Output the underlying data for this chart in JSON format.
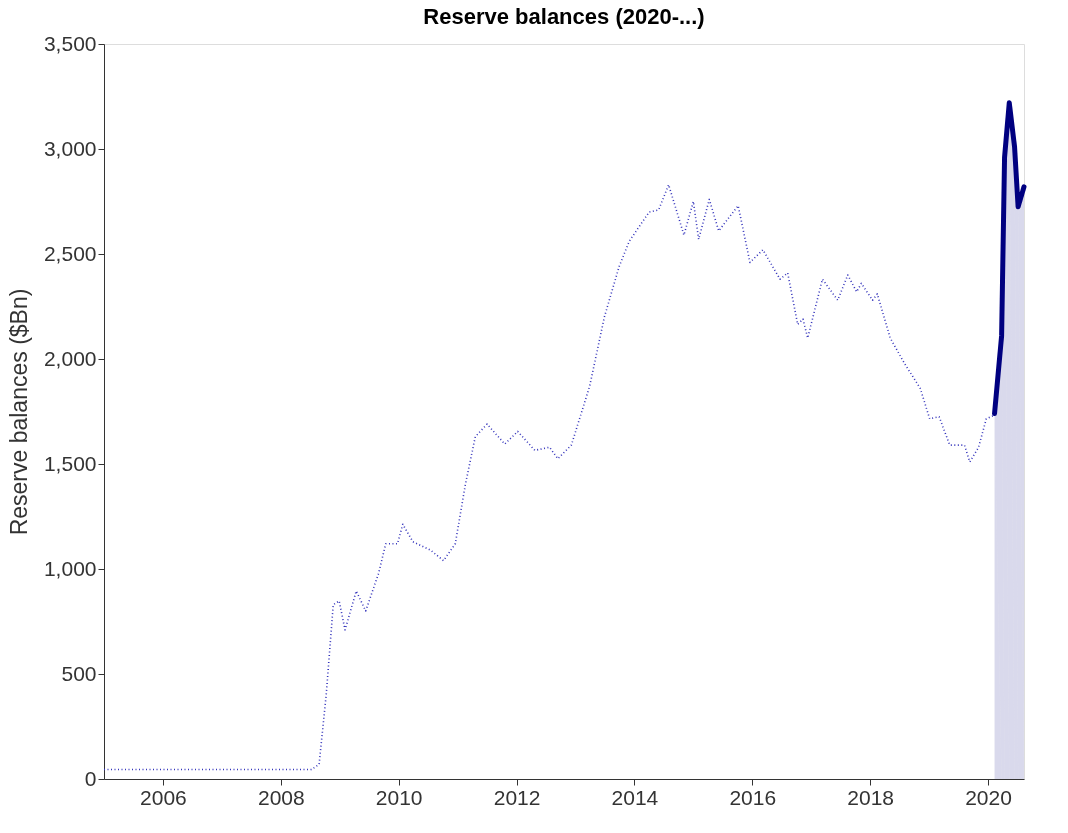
{
  "chart_data": {
    "type": "line",
    "title": "Reserve balances (2020-...)",
    "ylabel": "Reserve balances ($Bn)",
    "xlim": [
      2005,
      2020.61
    ],
    "xticks": [
      2006,
      2008,
      2010,
      2012,
      2014,
      2016,
      2018,
      2020
    ],
    "ylim": [
      0,
      3500
    ],
    "yticks": [
      0,
      500,
      {
        "value": 1000,
        "label": "1,000"
      },
      {
        "value": 1500,
        "label": "1,500"
      },
      {
        "value": 2000,
        "label": "2,000"
      },
      {
        "value": 2500,
        "label": "2,500"
      },
      {
        "value": 3000,
        "label": "3,000"
      },
      {
        "value": 3500,
        "label": "3,500"
      }
    ],
    "grid": false,
    "series": [
      {
        "line_style": "dotted",
        "color": "#3333bb",
        "x": [
          2005.0,
          2008.52,
          2008.65,
          2008.77,
          2008.89,
          2008.99,
          2009.09,
          2009.28,
          2009.44,
          2009.66,
          2009.78,
          2009.98,
          2010.07,
          2010.24,
          2010.54,
          2010.76,
          2010.96,
          2011.13,
          2011.3,
          2011.5,
          2011.8,
          2012.02,
          2012.31,
          2012.56,
          2012.7,
          2012.93,
          2013.24,
          2013.49,
          2013.74,
          2013.91,
          2014.25,
          2014.41,
          2014.58,
          2014.84,
          2015.0,
          2015.09,
          2015.27,
          2015.43,
          2015.76,
          2015.96,
          2016.18,
          2016.47,
          2016.6,
          2016.77,
          2016.86,
          2016.94,
          2017.19,
          2017.45,
          2017.62,
          2017.77,
          2017.85,
          2018.04,
          2018.12,
          2018.34,
          2018.58,
          2018.85,
          2019.01,
          2019.17,
          2019.35,
          2019.6,
          2019.69,
          2019.84,
          2019.97,
          2020.09
        ],
        "values": [
          45,
          45,
          70,
          400,
          830,
          848,
          710,
          895,
          800,
          980,
          1120,
          1120,
          1213,
          1130,
          1090,
          1040,
          1120,
          1400,
          1630,
          1690,
          1595,
          1655,
          1565,
          1580,
          1525,
          1590,
          1870,
          2200,
          2440,
          2560,
          2700,
          2710,
          2830,
          2590,
          2750,
          2570,
          2760,
          2610,
          2730,
          2460,
          2520,
          2380,
          2410,
          2165,
          2190,
          2100,
          2380,
          2280,
          2400,
          2320,
          2360,
          2280,
          2310,
          2100,
          1980,
          1860,
          1715,
          1725,
          1590,
          1590,
          1510,
          1580,
          1715,
          1730
        ]
      },
      {
        "type": "area",
        "line_style": "solid",
        "color": "#000080",
        "x": [
          2020.11,
          2020.23,
          2020.28,
          2020.36,
          2020.45,
          2020.51,
          2020.61
        ],
        "values": [
          1740,
          2110,
          2960,
          3220,
          3010,
          2725,
          2820
        ]
      }
    ]
  }
}
